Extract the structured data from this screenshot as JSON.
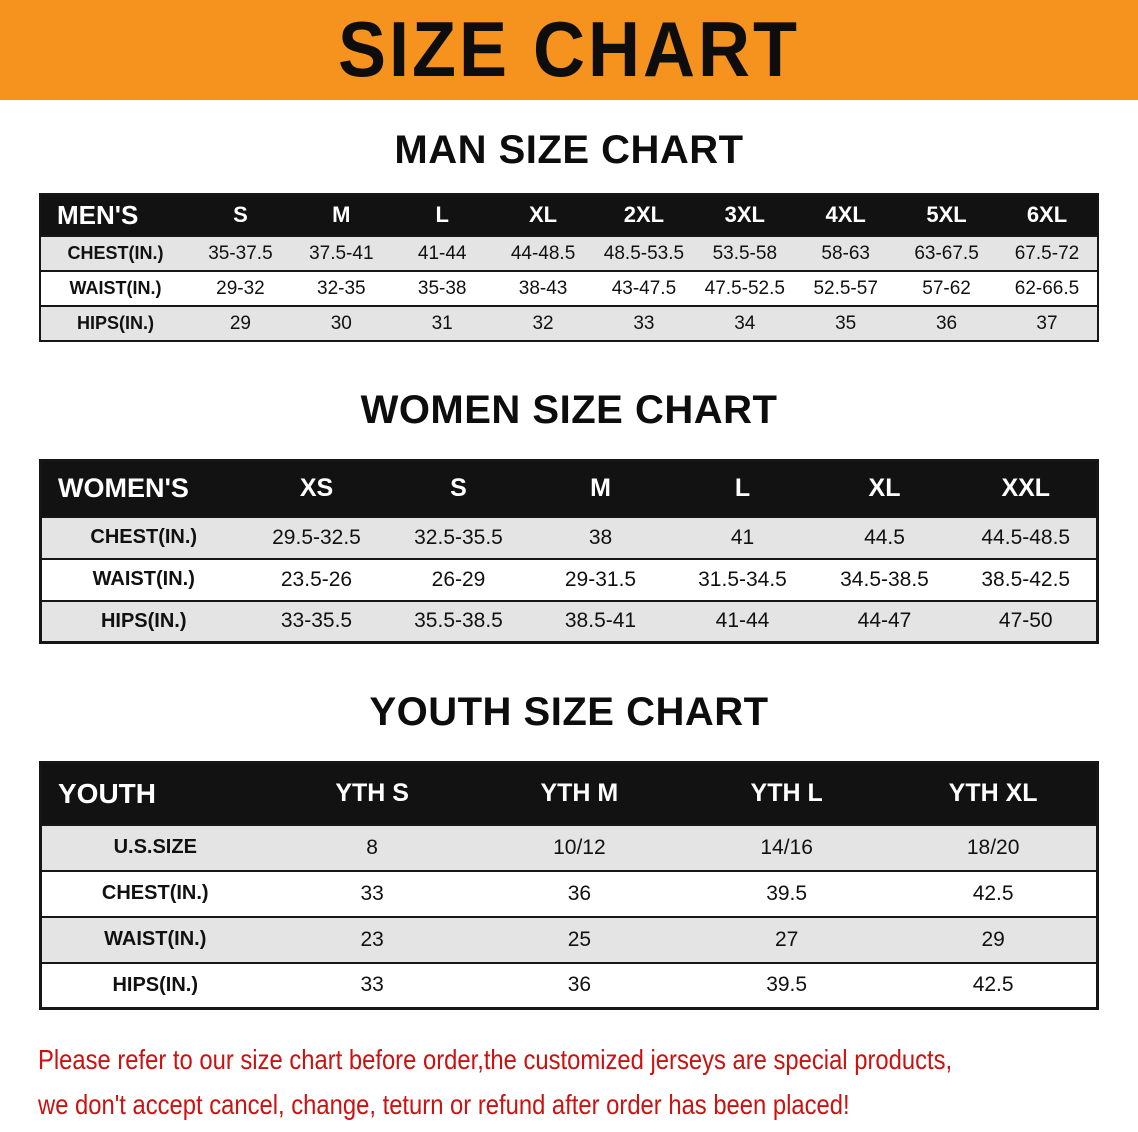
{
  "banner": {
    "title": "SIZE CHART",
    "bg_color": "#F6921E",
    "text_color": "#0d0d0d"
  },
  "men": {
    "heading": "MAN SIZE CHART",
    "label": "MEN'S",
    "columns": [
      "S",
      "M",
      "L",
      "XL",
      "2XL",
      "3XL",
      "4XL",
      "5XL",
      "6XL"
    ],
    "rows": [
      {
        "label": "CHEST(IN.)",
        "values": [
          "35-37.5",
          "37.5-41",
          "41-44",
          "44-48.5",
          "48.5-53.5",
          "53.5-58",
          "58-63",
          "63-67.5",
          "67.5-72"
        ]
      },
      {
        "label": "WAIST(IN.)",
        "values": [
          "29-32",
          "32-35",
          "35-38",
          "38-43",
          "43-47.5",
          "47.5-52.5",
          "52.5-57",
          "57-62",
          "62-66.5"
        ]
      },
      {
        "label": "HIPS(IN.)",
        "values": [
          "29",
          "30",
          "31",
          "32",
          "33",
          "34",
          "35",
          "36",
          "37"
        ]
      }
    ]
  },
  "women": {
    "heading": "WOMEN SIZE CHART",
    "label": "WOMEN'S",
    "columns": [
      "XS",
      "S",
      "M",
      "L",
      "XL",
      "XXL"
    ],
    "rows": [
      {
        "label": "CHEST(IN.)",
        "values": [
          "29.5-32.5",
          "32.5-35.5",
          "38",
          "41",
          "44.5",
          "44.5-48.5"
        ]
      },
      {
        "label": "WAIST(IN.)",
        "values": [
          "23.5-26",
          "26-29",
          "29-31.5",
          "31.5-34.5",
          "34.5-38.5",
          "38.5-42.5"
        ]
      },
      {
        "label": "HIPS(IN.)",
        "values": [
          "33-35.5",
          "35.5-38.5",
          "38.5-41",
          "41-44",
          "44-47",
          "47-50"
        ]
      }
    ]
  },
  "youth": {
    "heading": "YOUTH SIZE CHART",
    "label": "YOUTH",
    "columns": [
      "YTH S",
      "YTH M",
      "YTH L",
      "YTH XL"
    ],
    "rows": [
      {
        "label": "U.S.SIZE",
        "values": [
          "8",
          "10/12",
          "14/16",
          "18/20"
        ]
      },
      {
        "label": "CHEST(IN.)",
        "values": [
          "33",
          "36",
          "39.5",
          "42.5"
        ]
      },
      {
        "label": "WAIST(IN.)",
        "values": [
          "23",
          "25",
          "27",
          "29"
        ]
      },
      {
        "label": "HIPS(IN.)",
        "values": [
          "33",
          "36",
          "39.5",
          "42.5"
        ]
      }
    ]
  },
  "disclaimer": {
    "line1": "Please refer to our size chart before order,the customized jerseys are special products,",
    "line2": "we don't accept cancel, change, teturn or refund after order has been placed!",
    "color": "#cc1111"
  }
}
